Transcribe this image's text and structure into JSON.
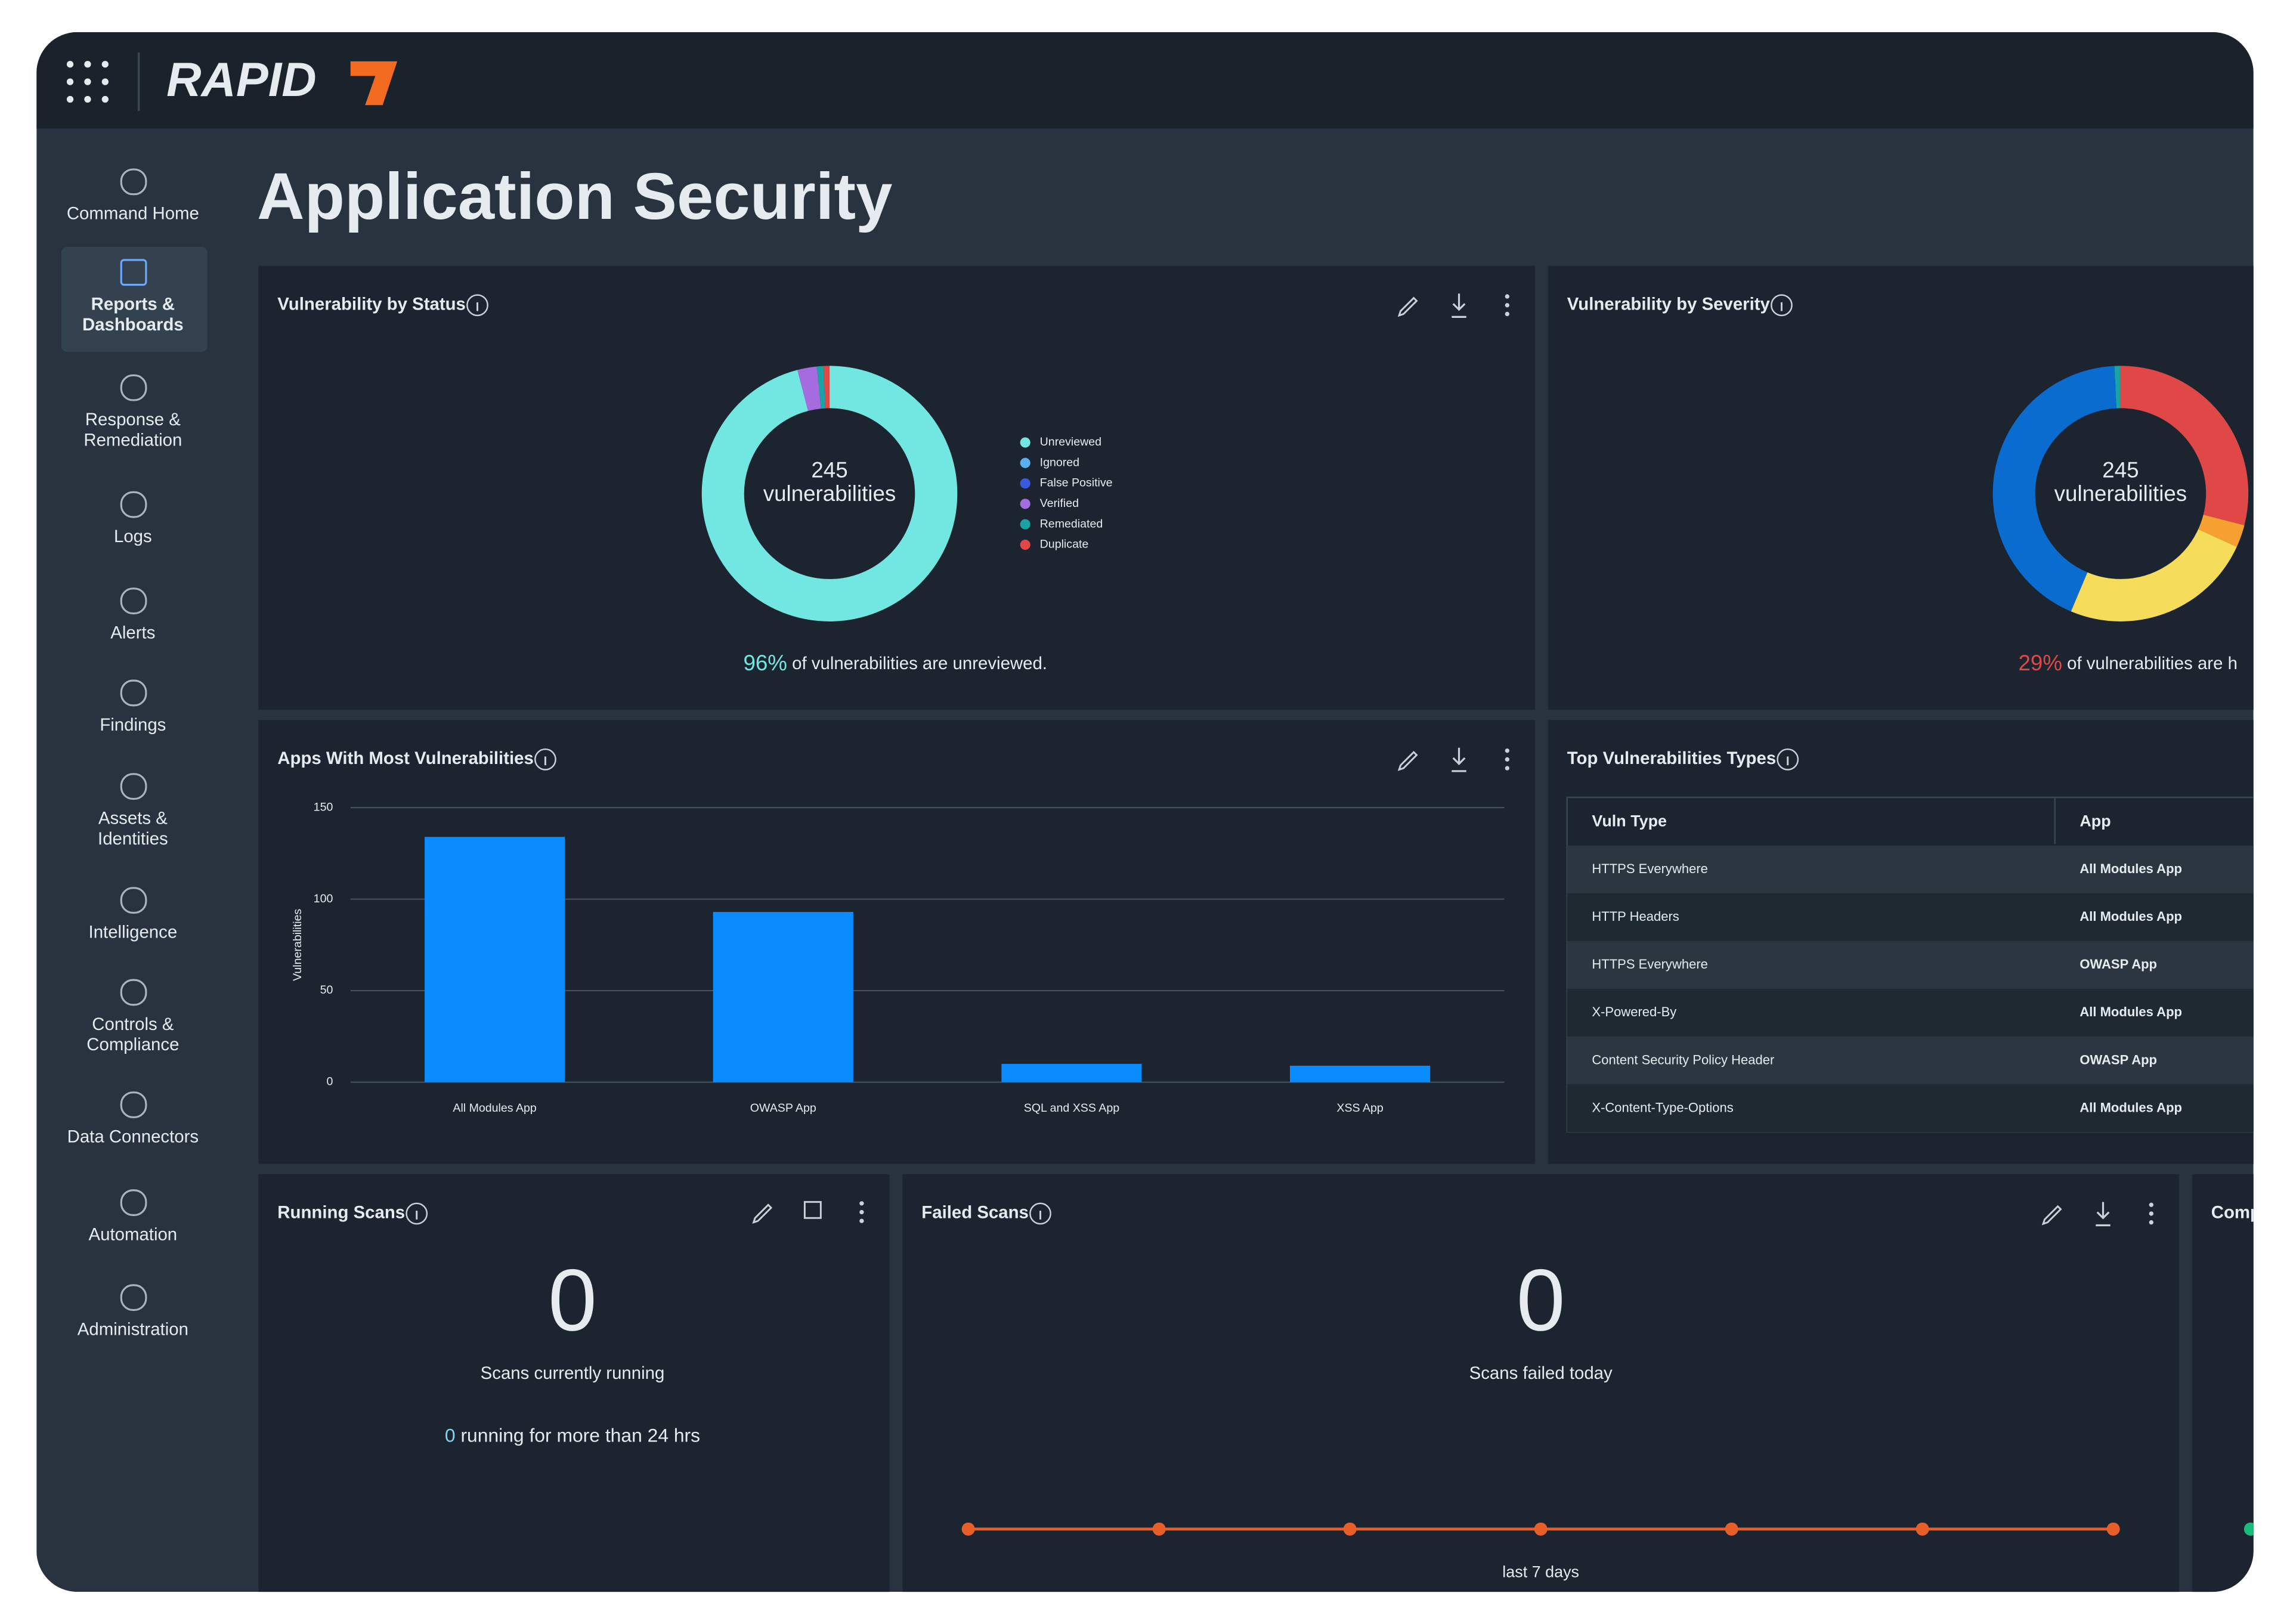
{
  "header": {
    "logo": "RAPID"
  },
  "sidebar": [
    {
      "lines": [
        "Command Home"
      ]
    },
    {
      "lines": [
        "Reports &",
        "Dashboards"
      ],
      "active": true
    },
    {
      "lines": [
        "Response &",
        "Remediation"
      ]
    },
    {
      "lines": [
        "Logs"
      ]
    },
    {
      "lines": [
        "Alerts"
      ]
    },
    {
      "lines": [
        "Findings"
      ]
    },
    {
      "lines": [
        "Assets &",
        "Identities"
      ]
    },
    {
      "lines": [
        "Intelligence"
      ]
    },
    {
      "lines": [
        "Controls &",
        "Compliance"
      ]
    },
    {
      "lines": [
        "Data Connectors"
      ]
    },
    {
      "lines": [
        "Automation"
      ]
    },
    {
      "lines": [
        "Administration"
      ]
    }
  ],
  "page_title": "Application Security",
  "status_chart": {
    "type": "donut",
    "title": "Vulnerability by Status",
    "total": 245,
    "center_label": "vulnerabilities",
    "series": [
      {
        "name": "Unreviewed",
        "color": "#72e6e0",
        "value": 235
      },
      {
        "name": "Ignored",
        "color": "#5ab0f0",
        "value": 0
      },
      {
        "name": "False Positive",
        "color": "#3a5bd9",
        "value": 0
      },
      {
        "name": "Verified",
        "color": "#a56ce0",
        "value": 6
      },
      {
        "name": "Remediated",
        "color": "#1aa3a3",
        "value": 2
      },
      {
        "name": "Duplicate",
        "color": "#e04848",
        "value": 2
      }
    ],
    "summary": {
      "value": 96,
      "value_label": "96%",
      "text": " of vulnerabilities are unreviewed.",
      "color": "#72e6e0"
    }
  },
  "severity_chart": {
    "type": "donut",
    "title": "Vulnerability by Severity",
    "total": 245,
    "center_label": "vulnerabilities",
    "series": [
      {
        "color": "#e04848",
        "value": 71
      },
      {
        "color": "#f5a030",
        "value": 7
      },
      {
        "color": "#f5dc5a",
        "value": 60
      },
      {
        "color": "#0a6ccf",
        "value": 105
      },
      {
        "color": "#1aa3a3",
        "value": 2
      }
    ],
    "summary": {
      "value": 29,
      "value_label": "29%",
      "text": " of vulnerabilities are h",
      "color": "#e04848"
    }
  },
  "apps_chart": {
    "type": "bar",
    "title": "Apps With Most Vulnerabilities",
    "y_label": "Vulnerabilities",
    "categories": [
      "All Modules App",
      "OWASP App",
      "SQL and XSS App",
      "XSS App"
    ],
    "values": [
      134,
      93,
      10,
      9
    ],
    "color": "#0a8cff",
    "ylim": [
      0,
      150
    ],
    "yticks": [
      0,
      50,
      100,
      150
    ],
    "grid": true
  },
  "top_types": {
    "title": "Top Vulnerabilities Types",
    "columns": [
      "Vuln Type",
      "App"
    ],
    "rows": [
      [
        "HTTPS Everywhere",
        "All Modules App"
      ],
      [
        "HTTP Headers",
        "All Modules App"
      ],
      [
        "HTTPS Everywhere",
        "OWASP App"
      ],
      [
        "X-Powered-By",
        "All Modules App"
      ],
      [
        "Content Security Policy Header",
        "OWASP App"
      ],
      [
        "X-Content-Type-Options",
        "All Modules App"
      ]
    ]
  },
  "running_scans": {
    "title": "Running Scans",
    "count": 0,
    "caption": "Scans currently running",
    "long_running": 0,
    "long_running_text": " running for more than 24 hrs"
  },
  "failed_scans": {
    "title": "Failed Scans",
    "count": 0,
    "caption": "Scans failed today",
    "trend": {
      "type": "line",
      "values": [
        0,
        0,
        0,
        0,
        0,
        0,
        0
      ],
      "ylim": [
        0,
        1
      ],
      "color": "#e85d2a",
      "x_label": "last 7 days"
    }
  },
  "third_widget": {
    "title": "Comp"
  }
}
